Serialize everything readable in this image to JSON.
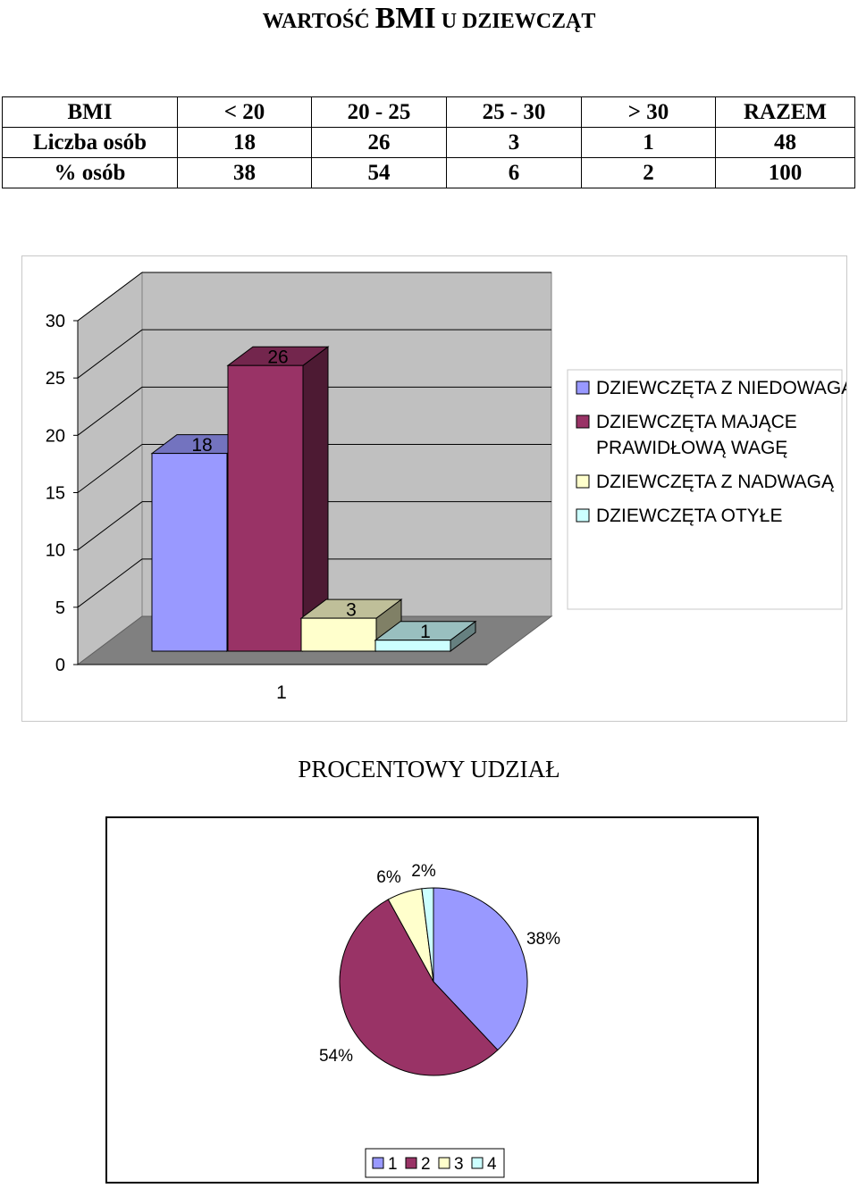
{
  "title": {
    "part1": "WARTOŚĆ ",
    "part2": "BMI",
    "part3": " U DZIEWCZĄT"
  },
  "table": {
    "rows": [
      [
        "BMI",
        "< 20",
        "20 - 25",
        "25 - 30",
        "> 30",
        "RAZEM"
      ],
      [
        "Liczba osób",
        "18",
        "26",
        "3",
        "1",
        "48"
      ],
      [
        "% osób",
        "38",
        "54",
        "6",
        "2",
        "100"
      ]
    ]
  },
  "chart_data": [
    {
      "type": "bar",
      "categories": [
        "1"
      ],
      "series": [
        {
          "name": "DZIEWCZĘTA Z NIEDOWAGĄ",
          "values": [
            18
          ],
          "color": "#9999ff"
        },
        {
          "name": "DZIEWCZĘTA MAJĄCE PRAWIDŁOWĄ WAGĘ",
          "values": [
            26
          ],
          "color": "#993366"
        },
        {
          "name": "DZIEWCZĘTA Z NADWAGĄ",
          "values": [
            3
          ],
          "color": "#ffffcc"
        },
        {
          "name": "DZIEWCZĘTA OTYŁE",
          "values": [
            1
          ],
          "color": "#ccffff"
        }
      ],
      "y_ticks": [
        "0",
        "5",
        "10",
        "15",
        "20",
        "25",
        "30"
      ],
      "ylim": [
        0,
        30
      ],
      "data_labels": [
        "18",
        "26",
        "3",
        "1"
      ],
      "legend_position": "right",
      "three_d": true
    },
    {
      "type": "pie",
      "title": "PROCENTOWY UDZIAŁ",
      "labels": [
        "1",
        "2",
        "3",
        "4"
      ],
      "values": [
        38,
        54,
        6,
        2
      ],
      "data_labels": [
        "38%",
        "54%",
        "6%",
        "2%"
      ],
      "colors": [
        "#9999ff",
        "#993366",
        "#ffffcc",
        "#ccffff"
      ],
      "legend_position": "bottom"
    }
  ]
}
